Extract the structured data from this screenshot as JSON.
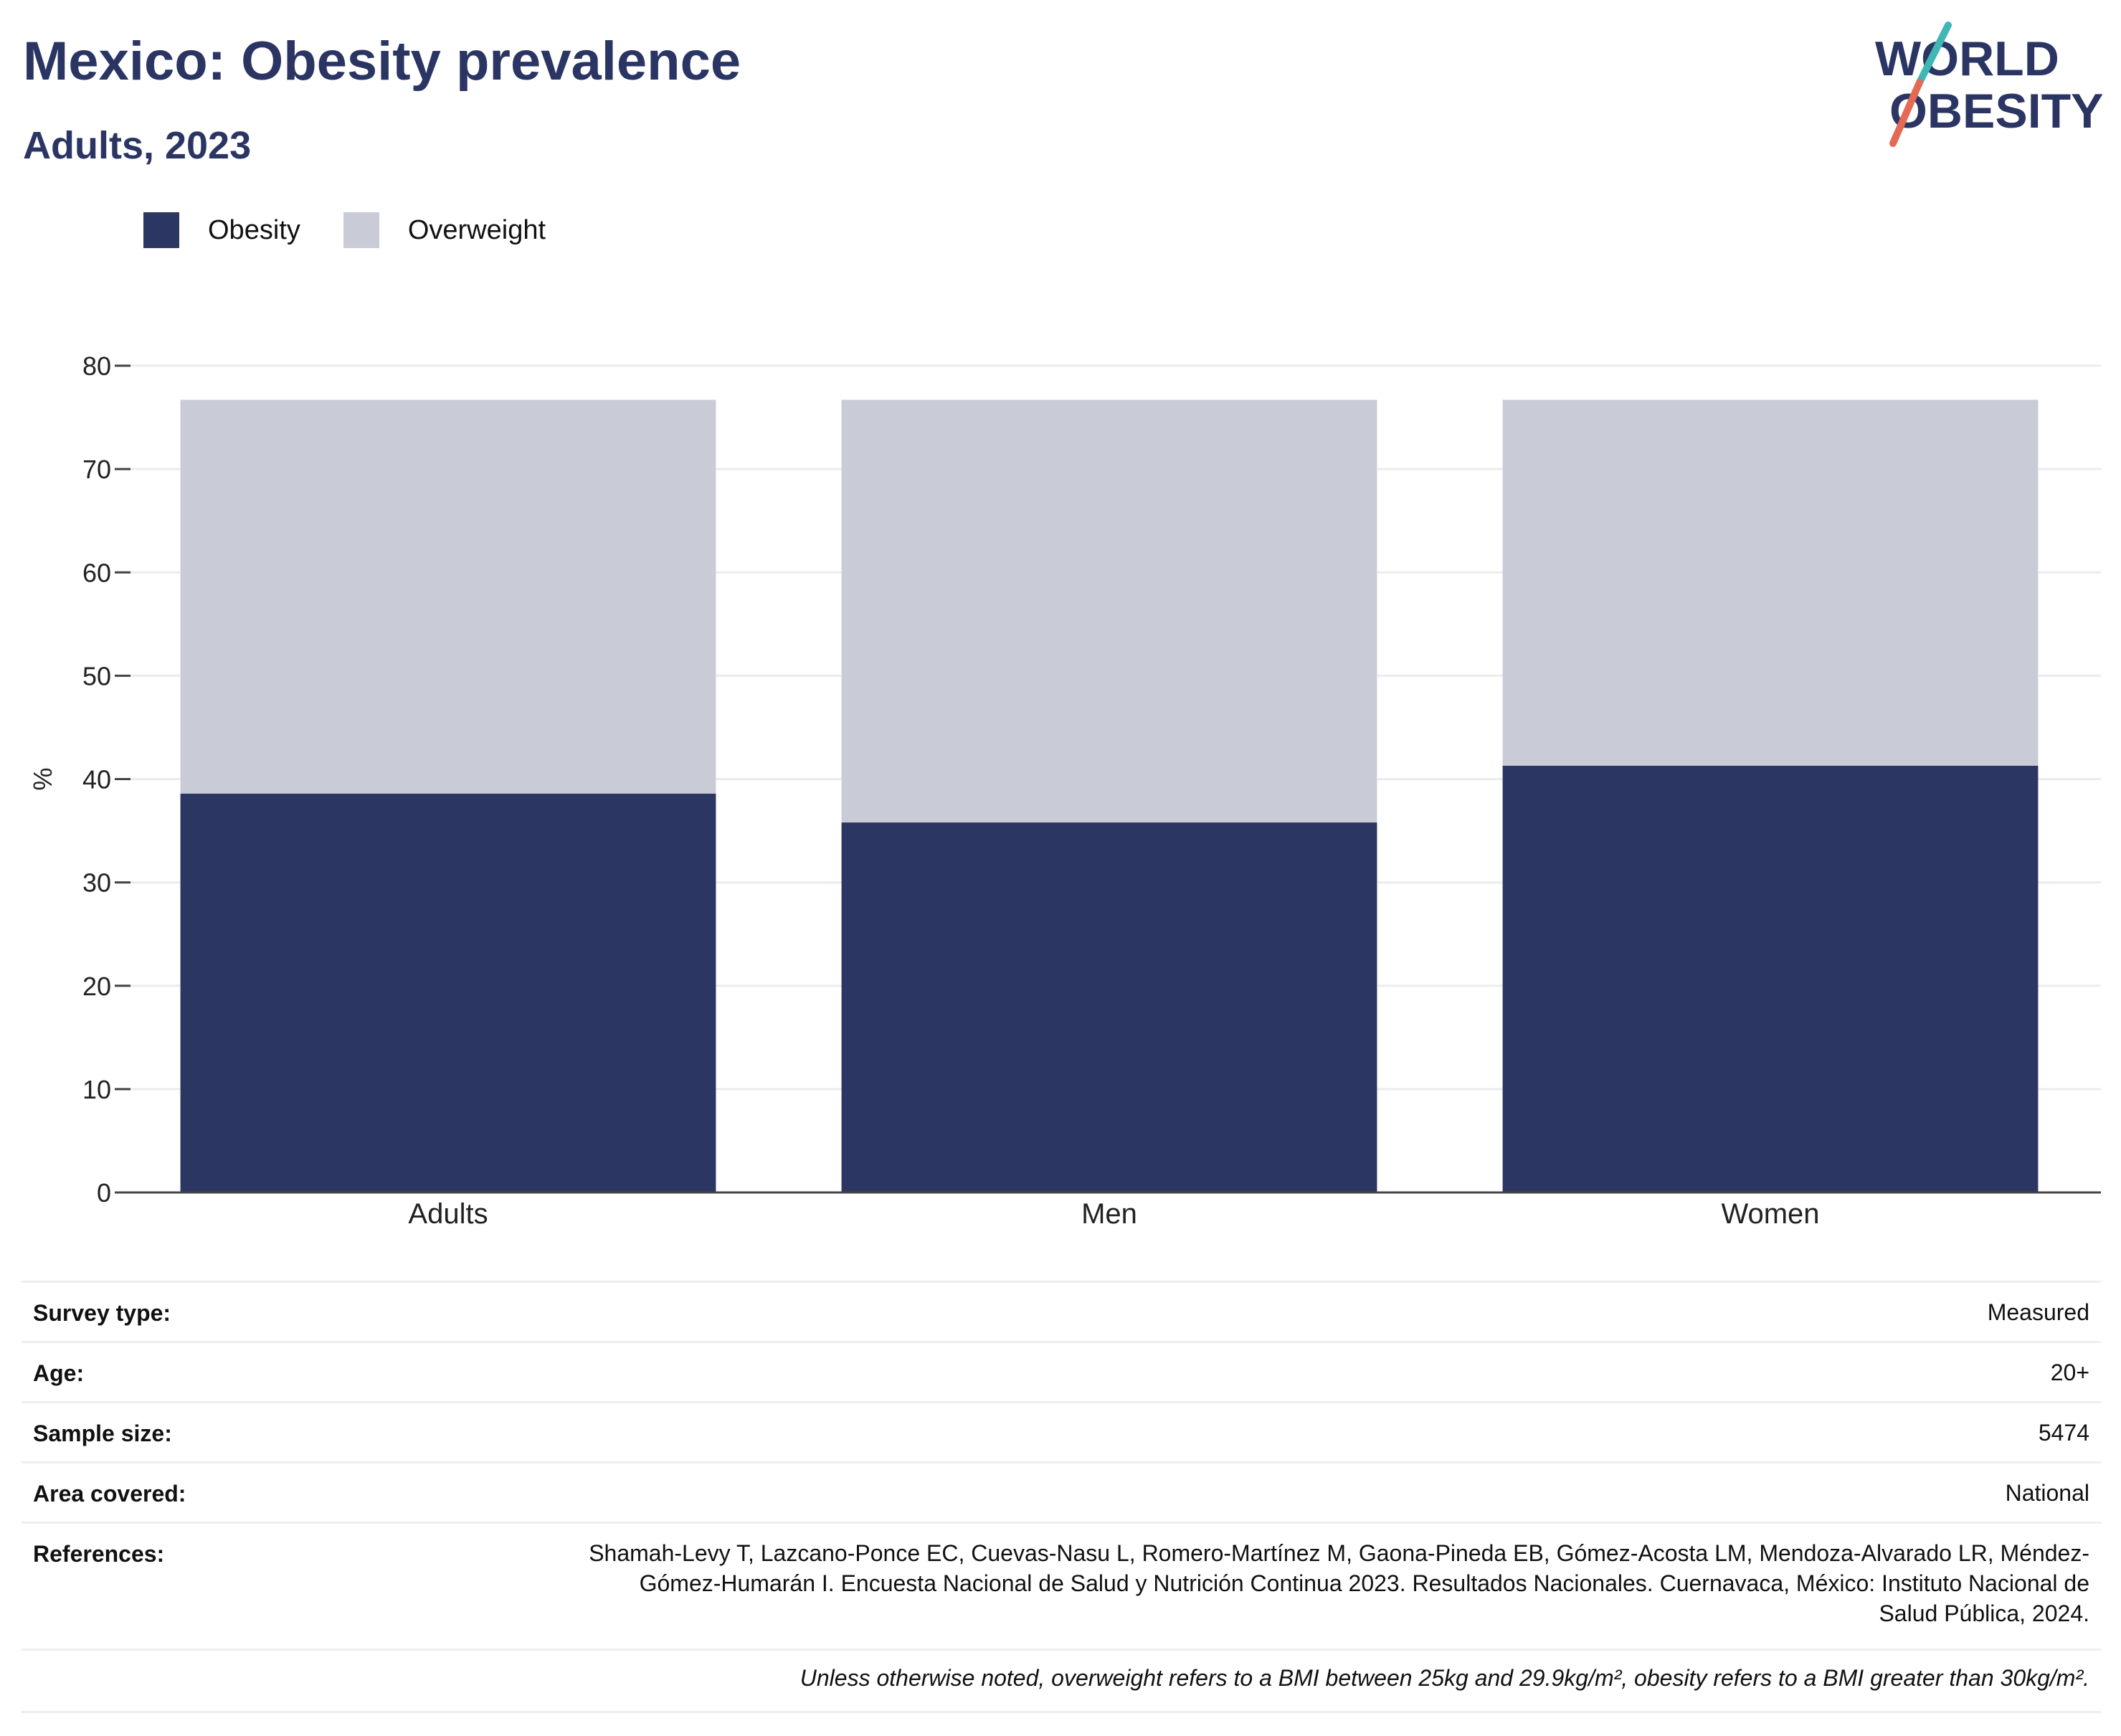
{
  "header": {
    "title": "Mexico: Obesity prevalence",
    "subtitle": "Adults, 2023",
    "logo_text_line1": "WORLD",
    "logo_text_line2": "OBESITY"
  },
  "legend": [
    {
      "label": "Obesity",
      "color": "#2b3663"
    },
    {
      "label": "Overweight",
      "color": "#c9ccd7"
    }
  ],
  "chart_data": {
    "type": "bar",
    "stacked": true,
    "categories": [
      "Adults",
      "Men",
      "Women"
    ],
    "series": [
      {
        "name": "Obesity",
        "values": [
          38.6,
          35.8,
          41.3
        ],
        "color": "#2b3663"
      },
      {
        "name": "Overweight",
        "values": [
          38.1,
          40.9,
          35.4
        ],
        "color": "#c9ccd7"
      }
    ],
    "ylabel": "%",
    "ylim": [
      0,
      80
    ],
    "yticks": [
      0,
      10,
      20,
      30,
      40,
      50,
      60,
      70,
      80
    ],
    "grid": true,
    "legend_position": "top-left"
  },
  "info": {
    "survey_type": {
      "label": "Survey type:",
      "value": "Measured"
    },
    "age": {
      "label": "Age:",
      "value": "20+"
    },
    "sample_size": {
      "label": "Sample size:",
      "value": "5474"
    },
    "area_covered": {
      "label": "Area covered:",
      "value": "National"
    },
    "references": {
      "label": "References:",
      "value": "Shamah-Levy T, Lazcano-Ponce EC, Cuevas-Nasu L, Romero-Martínez M, Gaona-Pineda EB, Gómez-Acosta LM, Mendoza-Alvarado LR, Méndez-Gómez-Humarán I. Encuesta Nacional de Salud y Nutrición Continua 2023. Resultados Nacionales. Cuernavaca, México: Instituto Nacional de Salud Pública, 2024."
    },
    "footnote": "Unless otherwise noted, overweight refers to a BMI between 25kg and 29.9kg/m², obesity refers to a BMI greater than 30kg/m²."
  }
}
